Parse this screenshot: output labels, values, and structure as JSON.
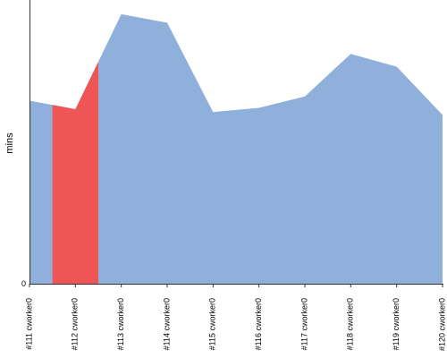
{
  "chart_data": {
    "type": "area",
    "ylabel": "mins",
    "xlabel": "",
    "ylim": [
      0,
      100
    ],
    "y_ticks": [
      "0"
    ],
    "x": [
      "#111 cworker0",
      "#112 cworker0",
      "#113 cworker0",
      "#114 cworker0",
      "#115 cworker0",
      "#116 cworker0",
      "#117 cworker0",
      "#118 cworker0",
      "#119 cworker0",
      "#120 cworker0"
    ],
    "values": [
      64.5,
      61.5,
      95.0,
      92.0,
      60.5,
      62.0,
      66.0,
      81.0,
      76.5,
      59.5
    ],
    "highlight_index": 1,
    "colors": {
      "fill": "#8fb0da",
      "highlight": "#f05555",
      "axis": "#333333"
    }
  }
}
